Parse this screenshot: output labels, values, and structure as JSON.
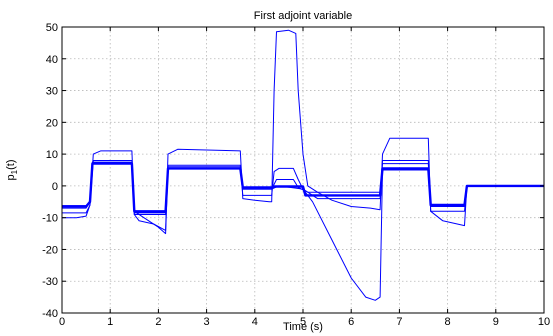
{
  "chart_data": {
    "type": "line",
    "title": "First adjoint variable",
    "xlabel": "Time (s)",
    "ylabel": "p",
    "ylabel_sub": "1",
    "ylabel_suffix": "(t)",
    "xlim": [
      0,
      10
    ],
    "ylim": [
      -40,
      50
    ],
    "xticks": [
      "0",
      "1",
      "2",
      "3",
      "4",
      "5",
      "6",
      "7",
      "8",
      "9",
      "10"
    ],
    "yticks": [
      "50",
      "40",
      "30",
      "20",
      "10",
      "0",
      "-10",
      "-20",
      "-30",
      "-40"
    ],
    "grid": true,
    "line_color": "#0000ff",
    "series": [
      {
        "thick": true,
        "points": [
          [
            0,
            -6.5
          ],
          [
            0.5,
            -6.5
          ],
          [
            0.58,
            -5
          ],
          [
            0.63,
            7
          ],
          [
            1.45,
            7
          ],
          [
            1.5,
            -8
          ],
          [
            2.15,
            -8
          ],
          [
            2.2,
            5.5
          ],
          [
            3.7,
            5.5
          ],
          [
            3.75,
            -0.5
          ],
          [
            4.35,
            -0.5
          ],
          [
            4.4,
            -0.2
          ],
          [
            5.0,
            -0.2
          ],
          [
            5.05,
            -3
          ],
          [
            6.6,
            -3
          ],
          [
            6.65,
            5.5
          ],
          [
            7.6,
            5.5
          ],
          [
            7.65,
            -6
          ],
          [
            8.35,
            -6
          ],
          [
            8.4,
            0
          ],
          [
            10,
            0
          ]
        ]
      },
      {
        "thick": false,
        "points": [
          [
            0,
            -6.2
          ],
          [
            0.5,
            -6.2
          ],
          [
            0.58,
            -5
          ],
          [
            0.63,
            7.5
          ],
          [
            1.45,
            7.5
          ],
          [
            1.5,
            -8.5
          ],
          [
            2.15,
            -8.5
          ],
          [
            2.2,
            6
          ],
          [
            3.7,
            6
          ],
          [
            3.75,
            -1
          ],
          [
            4.35,
            -1
          ],
          [
            4.45,
            2
          ],
          [
            4.8,
            2
          ],
          [
            4.9,
            -0.5
          ],
          [
            5.1,
            -2
          ],
          [
            6.6,
            -2
          ],
          [
            6.65,
            7
          ],
          [
            7.6,
            7
          ],
          [
            7.65,
            -6.5
          ],
          [
            8.35,
            -6.5
          ],
          [
            8.4,
            0
          ],
          [
            10,
            0
          ]
        ]
      },
      {
        "thick": false,
        "points": [
          [
            0,
            -8.5
          ],
          [
            0.5,
            -8.5
          ],
          [
            0.58,
            -6
          ],
          [
            0.65,
            8
          ],
          [
            1.45,
            8
          ],
          [
            1.5,
            -9
          ],
          [
            2.15,
            -9
          ],
          [
            2.2,
            6.5
          ],
          [
            3.7,
            6.5
          ],
          [
            3.75,
            -3
          ],
          [
            4.35,
            -3
          ],
          [
            4.4,
            4.5
          ],
          [
            4.5,
            5.5
          ],
          [
            4.8,
            5.5
          ],
          [
            4.9,
            2
          ],
          [
            5.0,
            -1
          ],
          [
            5.3,
            -4
          ],
          [
            6.6,
            -4
          ],
          [
            6.65,
            8
          ],
          [
            7.6,
            8
          ],
          [
            7.65,
            -8
          ],
          [
            8.35,
            -8
          ],
          [
            8.4,
            0
          ],
          [
            10,
            0
          ]
        ]
      },
      {
        "thick": false,
        "points": [
          [
            0,
            -10
          ],
          [
            0.3,
            -10
          ],
          [
            0.5,
            -9.5
          ],
          [
            0.58,
            -6
          ],
          [
            0.65,
            10
          ],
          [
            0.8,
            11
          ],
          [
            1.45,
            11
          ],
          [
            1.5,
            -9
          ],
          [
            1.6,
            -11
          ],
          [
            1.9,
            -12
          ],
          [
            2.15,
            -14
          ],
          [
            2.2,
            10
          ],
          [
            2.4,
            11.5
          ],
          [
            3.7,
            11
          ],
          [
            3.75,
            -4
          ],
          [
            4.0,
            -4.5
          ],
          [
            4.3,
            -5
          ],
          [
            4.35,
            -5
          ],
          [
            4.4,
            30
          ],
          [
            4.45,
            48.5
          ],
          [
            4.7,
            49
          ],
          [
            4.85,
            48
          ],
          [
            4.9,
            30
          ],
          [
            5.0,
            10
          ],
          [
            5.1,
            0
          ],
          [
            5.3,
            -2
          ],
          [
            5.6,
            -4.5
          ],
          [
            6.0,
            -6.5
          ],
          [
            6.4,
            -7
          ],
          [
            6.6,
            -7.5
          ],
          [
            6.65,
            10
          ],
          [
            6.8,
            15
          ],
          [
            7.6,
            15
          ],
          [
            7.65,
            -8
          ],
          [
            7.9,
            -11
          ],
          [
            8.35,
            -12.5
          ],
          [
            8.4,
            0
          ],
          [
            10,
            0
          ]
        ]
      },
      {
        "thick": false,
        "points": [
          [
            0,
            -7
          ],
          [
            0.5,
            -7
          ],
          [
            0.58,
            -5
          ],
          [
            0.63,
            7
          ],
          [
            1.45,
            7
          ],
          [
            1.5,
            -8
          ],
          [
            1.7,
            -10
          ],
          [
            2.0,
            -13
          ],
          [
            2.15,
            -15
          ],
          [
            2.2,
            5.5
          ],
          [
            3.7,
            5.5
          ],
          [
            3.75,
            -1
          ],
          [
            4.35,
            -1
          ],
          [
            4.5,
            0
          ],
          [
            5.0,
            -1
          ],
          [
            5.2,
            -5
          ],
          [
            5.6,
            -17
          ],
          [
            6.0,
            -29
          ],
          [
            6.3,
            -35
          ],
          [
            6.5,
            -36
          ],
          [
            6.6,
            -35
          ],
          [
            6.65,
            5
          ],
          [
            7.6,
            5
          ],
          [
            7.65,
            -6
          ],
          [
            8.35,
            -6
          ],
          [
            8.4,
            0
          ],
          [
            10,
            0
          ]
        ]
      }
    ]
  }
}
